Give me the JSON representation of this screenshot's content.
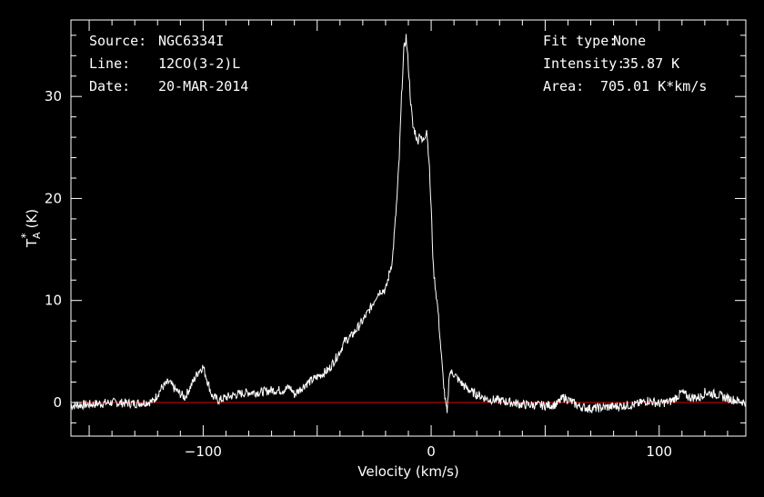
{
  "info": {
    "source_label": "Source:",
    "source_value": "NGC6334I",
    "line_label": "Line:",
    "line_value": "12CO(3-2)L",
    "date_label": "Date:",
    "date_value": "20-MAR-2014",
    "fit_label": "Fit type:",
    "fit_value": "None",
    "intensity_label": "Intensity:",
    "intensity_value": "35.87 K",
    "area_label": "Area:",
    "area_value": "705.01 K*km/s"
  },
  "chart_data": {
    "type": "line",
    "title": "",
    "xlabel": "Velocity (km/s)",
    "ylabel_main": "T",
    "ylabel_sup": "*",
    "ylabel_sub": "A",
    "ylabel_unit": "(K)",
    "xlim": [
      -158,
      138
    ],
    "ylim": [
      -3.3,
      37.5
    ],
    "xticks": [
      -100,
      0,
      100
    ],
    "xtick_labels": [
      "−100",
      "0",
      "100"
    ],
    "yticks": [
      0,
      10,
      20,
      30
    ],
    "ytick_labels": [
      "0",
      "10",
      "20",
      "30"
    ],
    "baseline": 0,
    "line_color": "#ffffff",
    "baseline_color": "#e00000",
    "axis_color": "#ffffff",
    "series": [
      {
        "x": [
          -158,
          -150,
          -140,
          -130,
          -122,
          -118,
          -115,
          -112,
          -108,
          -105,
          -102,
          -100,
          -98,
          -96,
          -93,
          -90,
          -85,
          -80,
          -75,
          -70,
          -65,
          -62,
          -60,
          -55,
          -50,
          -45,
          -40,
          -38,
          -35,
          -30,
          -26,
          -24,
          -22,
          -20,
          -18,
          -17,
          -16,
          -15,
          -14,
          -13,
          -12,
          -11,
          -10,
          -9,
          -8,
          -7,
          -6,
          -5,
          -4,
          -3,
          -2,
          -1,
          0,
          1,
          2,
          3,
          4,
          5,
          6,
          7,
          8,
          10,
          12,
          15,
          18,
          20,
          25,
          30,
          35,
          40,
          50,
          55,
          58,
          60,
          62,
          65,
          70,
          80,
          90,
          95,
          100,
          105,
          108,
          110,
          113,
          118,
          120,
          125,
          130,
          138
        ],
        "y": [
          -0.3,
          -0.2,
          0.0,
          -0.1,
          0.1,
          1.5,
          2.0,
          1.2,
          0.5,
          1.8,
          3.1,
          3.5,
          2.0,
          0.6,
          0.2,
          0.5,
          0.8,
          1.0,
          1.0,
          1.2,
          1.2,
          1.5,
          0.8,
          1.8,
          2.5,
          3.2,
          5.0,
          6.0,
          6.5,
          8.0,
          9.5,
          10.5,
          11.0,
          11.0,
          13.0,
          14.0,
          17.0,
          20.0,
          24.0,
          30.0,
          34.5,
          35.87,
          33.0,
          29.5,
          27.0,
          26.5,
          25.5,
          26.5,
          25.5,
          26.0,
          26.8,
          24.0,
          19.0,
          13.0,
          11.0,
          9.0,
          6.0,
          3.0,
          0.5,
          -1.2,
          3.0,
          2.8,
          2.2,
          1.5,
          1.0,
          0.8,
          0.3,
          0.2,
          0.0,
          -0.2,
          -0.3,
          -0.2,
          0.5,
          0.3,
          0.0,
          -0.4,
          -0.6,
          -0.4,
          -0.2,
          0.2,
          -0.1,
          0.1,
          0.6,
          1.0,
          0.5,
          0.5,
          1.0,
          0.8,
          0.4,
          0.0
        ]
      }
    ]
  }
}
